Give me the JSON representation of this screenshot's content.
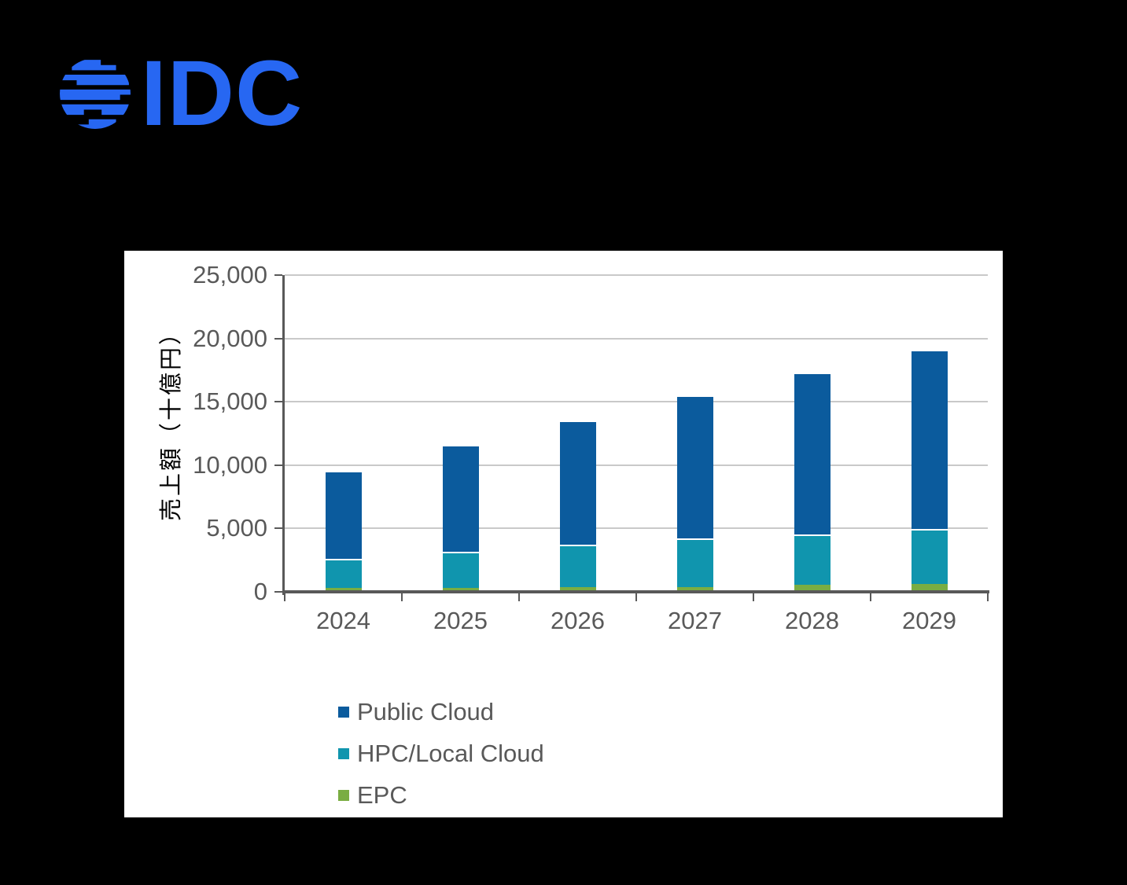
{
  "page": {
    "background": "#000000"
  },
  "logo": {
    "brand": "IDC",
    "color": "#2767F2",
    "icon": "globe-stripes-icon"
  },
  "panel": {
    "background": "#FFFFFF"
  },
  "chart_data": {
    "type": "bar",
    "stacked": true,
    "title": "",
    "xlabel": "",
    "ylabel": "売上額（十億円）",
    "categories": [
      "2024",
      "2025",
      "2026",
      "2027",
      "2028",
      "2029"
    ],
    "series": [
      {
        "name": "Public Cloud",
        "color": "#0B5B9D",
        "values": [
          6960,
          8450,
          9810,
          11310,
          12800,
          14160
        ]
      },
      {
        "name": "HPC/Local Cloud",
        "color": "#1095AE",
        "values": [
          2300,
          2830,
          3350,
          3790,
          3970,
          4340
        ]
      },
      {
        "name": "EPC",
        "color": "#7AAD42",
        "values": [
          280,
          310,
          350,
          400,
          530,
          600
        ]
      }
    ],
    "ylim": [
      0,
      25000
    ],
    "ytick_interval": 5000,
    "ytick_labels": [
      "0",
      "5,000",
      "10,000",
      "15,000",
      "20,000",
      "25,000"
    ],
    "grid": true,
    "legend_position": "bottom-left",
    "axis_color": "#595959",
    "gridline_color": "#C9C9C9",
    "text_color": "#595959"
  }
}
